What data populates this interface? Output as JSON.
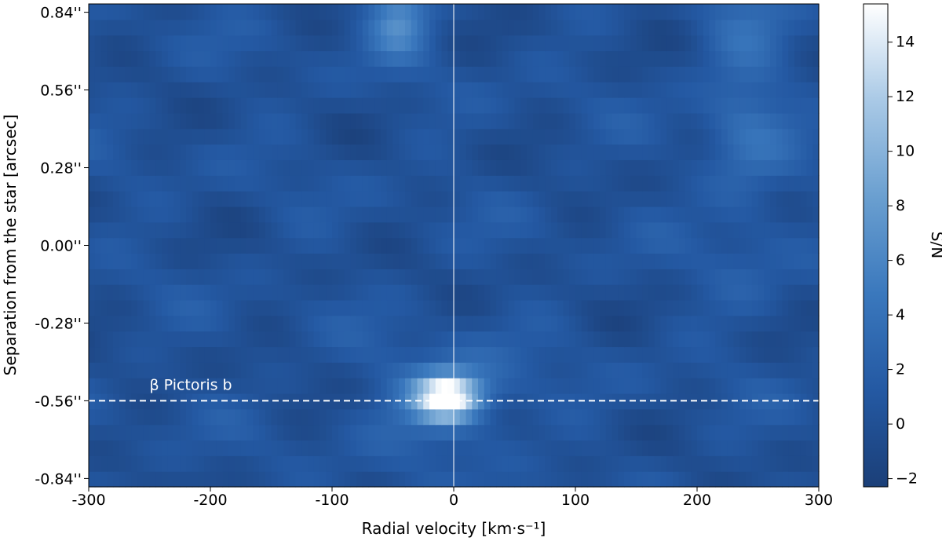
{
  "chart_data": {
    "type": "heatmap",
    "xlabel": "Radial velocity [km·s⁻¹]",
    "ylabel": "Separation from the star [arcsec]",
    "colorbar_label": "S/N",
    "xlim": [
      -300,
      300
    ],
    "ylim": [
      -0.87,
      0.87
    ],
    "x_ticks": [
      -300,
      -200,
      -100,
      0,
      100,
      200,
      300
    ],
    "x_tick_labels": [
      "-300",
      "-200",
      "-100",
      "0",
      "100",
      "200",
      "300"
    ],
    "y_ticks": [
      0.84,
      0.56,
      0.28,
      0.0,
      -0.28,
      -0.56,
      -0.84
    ],
    "y_tick_labels": [
      "0.84''",
      "0.56''",
      "0.28''",
      "0.00''",
      "-0.28''",
      "-0.56''",
      "-0.84''"
    ],
    "colorbar_range": [
      -2.3,
      15.4
    ],
    "colorbar_ticks": [
      -2,
      0,
      2,
      4,
      6,
      8,
      10,
      12,
      14
    ],
    "colorbar_tick_labels": [
      "−2",
      "0",
      "2",
      "4",
      "6",
      "8",
      "10",
      "12",
      "14"
    ],
    "colormap": [
      "#1b3f78",
      "#2459a3",
      "#3a78bd",
      "#6a9fd0",
      "#a9c9e6",
      "#ffffff"
    ],
    "vertical_line_x": 0,
    "horizontal_line_y": -0.56,
    "annotation": {
      "text": "β Pictoris b",
      "x": -250,
      "y": -0.52
    },
    "peak": {
      "x": -5,
      "y": -0.545,
      "value": 15.2
    },
    "secondary_peak": {
      "x": -45,
      "y": 0.82,
      "value": 7.0
    },
    "grid": false
  }
}
